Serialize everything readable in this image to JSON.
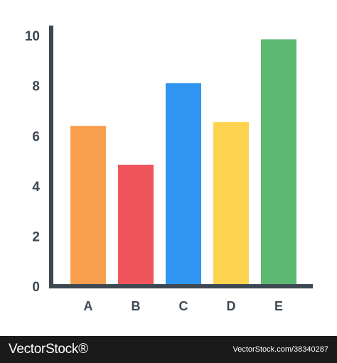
{
  "chart_data": {
    "type": "bar",
    "categories": [
      "A",
      "B",
      "C",
      "D",
      "E"
    ],
    "values": [
      6.4,
      4.85,
      8.1,
      6.55,
      9.85
    ],
    "colors": [
      "#f9a04e",
      "#f0555c",
      "#2f95f0",
      "#fdd34f",
      "#5cb873"
    ],
    "yticks": [
      0,
      2,
      4,
      6,
      8,
      10
    ],
    "ylim": [
      0,
      10.4
    ],
    "axis_color": "#3d4852",
    "grid": false,
    "title": "",
    "xlabel": "",
    "ylabel": ""
  },
  "footer": {
    "brand": "VectorStock®",
    "image_id": "VectorStock.com/38340287"
  }
}
